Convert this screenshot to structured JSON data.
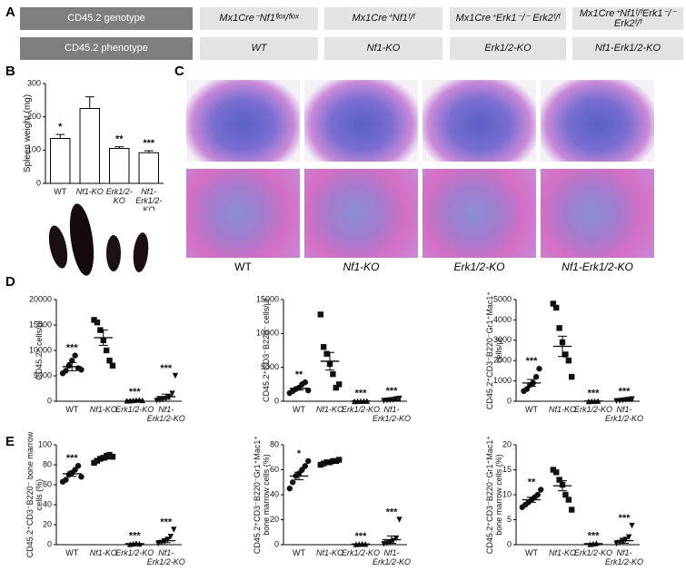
{
  "panel_labels": [
    "A",
    "B",
    "C",
    "D",
    "E"
  ],
  "table": {
    "rows": [
      [
        "CD45.2 genotype",
        "Mx1Cre⁻Nf1ᶠˡᵒˣ/ᶠˡᵒˣ",
        "Mx1Cre⁺Nf1ᶠ/ᶠ",
        "Mx1Cre⁺Erk1⁻/⁻ Erk2ᶠ/ᶠ",
        "Mx1Cre⁺Nf1ᶠ/ᶠErk1⁻/⁻ Erk2ᶠ/ᶠ"
      ],
      [
        "CD45.2 phenotype",
        "WT",
        "Nf1-KO",
        "Erk1/2-KO",
        "Nf1-Erk1/2-KO"
      ]
    ]
  },
  "histology": {
    "labels": [
      "WT",
      "Nf1-KO",
      "Erk1/2-KO",
      "Nf1-Erk1/2-KO"
    ]
  },
  "chart_data": [
    {
      "type": "bar",
      "ylabel": "Spleen weight (mg)",
      "categories": [
        "WT",
        "Nf1-KO",
        "Erk1/2-KO",
        "Nf1-Erk1/2-KO"
      ],
      "values": [
        135,
        225,
        105,
        92
      ],
      "errors": [
        12,
        35,
        5,
        6
      ],
      "annotations": [
        "*",
        null,
        "**",
        "***"
      ],
      "ylim": [
        0,
        300
      ],
      "yticks": [
        0,
        100,
        200,
        300
      ],
      "color": "#ffffff"
    },
    {
      "type": "dot",
      "ylabel": "CD45.2⁺ cells/μl",
      "categories": [
        "WT",
        "Nf1-KO",
        "Erk1/2-KO",
        "Nf1-Erk1/2-KO"
      ],
      "markers": [
        "circle",
        "square",
        "triangle",
        "triangle-down"
      ],
      "values": [
        6800,
        12500,
        200,
        900
      ],
      "errors": [
        800,
        1500,
        50,
        500
      ],
      "points": [
        [
          5500,
          6000,
          7000,
          8000,
          9000,
          6500,
          6200
        ],
        [
          16000,
          15500,
          14000,
          12000,
          10000,
          8000,
          7000
        ],
        [
          100,
          150,
          200,
          250,
          300,
          200
        ],
        [
          100,
          200,
          300,
          500,
          800,
          1500,
          5000
        ]
      ],
      "annotations": [
        "***",
        null,
        "***",
        "***"
      ],
      "ylim": [
        0,
        20000
      ],
      "yticks": [
        0,
        5000,
        10000,
        15000,
        20000
      ],
      "color": "#111111"
    },
    {
      "type": "dot",
      "ylabel": "CD45.2⁺CD3⁻B220⁻ cells/μl",
      "categories": [
        "WT",
        "Nf1-KO",
        "Erk1/2-KO",
        "Nf1-Erk1/2-KO"
      ],
      "markers": [
        "circle",
        "square",
        "triangle",
        "triangle-down"
      ],
      "values": [
        1900,
        5900,
        50,
        150
      ],
      "errors": [
        250,
        1300,
        10,
        60
      ],
      "points": [
        [
          1200,
          1500,
          1800,
          2000,
          2500,
          2800,
          1600
        ],
        [
          12800,
          8000,
          7000,
          5500,
          4000,
          2000,
          2500
        ],
        [
          0,
          20,
          30,
          40,
          50
        ],
        [
          50,
          100,
          150,
          200,
          300,
          400
        ]
      ],
      "annotations": [
        "**",
        null,
        "***",
        "***"
      ],
      "ylim": [
        0,
        15000
      ],
      "yticks": [
        0,
        5000,
        10000,
        15000
      ],
      "color": "#111111"
    },
    {
      "type": "dot",
      "ylabel": "CD45.2⁺CD3⁻B220⁻Gr1⁺Mac1⁺ cells/μl",
      "categories": [
        "WT",
        "Nf1-KO",
        "Erk1/2-KO",
        "Nf1-Erk1/2-KO"
      ],
      "markers": [
        "circle",
        "square",
        "triangle",
        "triangle-down"
      ],
      "values": [
        900,
        2700,
        10,
        50
      ],
      "errors": [
        170,
        500,
        5,
        15
      ],
      "points": [
        [
          500,
          600,
          800,
          900,
          1200,
          1600
        ],
        [
          4800,
          4600,
          3600,
          2900,
          2300,
          2000,
          1200
        ],
        [
          0,
          10,
          10,
          20
        ],
        [
          10,
          20,
          40,
          60,
          80,
          100
        ]
      ],
      "annotations": [
        "***",
        null,
        "***",
        "***"
      ],
      "ylim": [
        0,
        5000
      ],
      "yticks": [
        0,
        1000,
        2000,
        3000,
        4000,
        5000
      ],
      "color": "#111111"
    },
    {
      "type": "dot",
      "ylabel": "CD45.2⁺CD3⁻B220⁻ bone marrow cells (%)",
      "categories": [
        "WT",
        "Nf1-KO",
        "Erk1/2-KO",
        "Nf1-Erk1/2-KO"
      ],
      "markers": [
        "circle",
        "square",
        "triangle",
        "triangle-down"
      ],
      "values": [
        71,
        86,
        1,
        4
      ],
      "errors": [
        2.5,
        1.2,
        0.3,
        2
      ],
      "points": [
        [
          63,
          65,
          70,
          72,
          75,
          79,
          68
        ],
        [
          82,
          84,
          86,
          87,
          89,
          90,
          88
        ],
        [
          0.5,
          1,
          1.5,
          1
        ],
        [
          1,
          2,
          3,
          5,
          8,
          15
        ]
      ],
      "annotations": [
        "***",
        null,
        "***",
        "***"
      ],
      "ylim": [
        0,
        100
      ],
      "yticks": [
        0,
        20,
        40,
        60,
        80,
        100
      ],
      "color": "#111111"
    },
    {
      "type": "dot",
      "ylabel": "CD45.2⁺CD3⁻B220⁻Gr1⁺Mac1⁺ bone marrow cells (%)",
      "categories": [
        "WT",
        "Nf1-KO",
        "Erk1/2-KO",
        "Nf1-Erk1/2-KO"
      ],
      "markers": [
        "circle",
        "square",
        "triangle",
        "triangle-down"
      ],
      "values": [
        55,
        66,
        0.5,
        4
      ],
      "errors": [
        3,
        0.8,
        0.1,
        3
      ],
      "points": [
        [
          45,
          50,
          55,
          57,
          60,
          63,
          67
        ],
        [
          64,
          65,
          66,
          66,
          67,
          67,
          68
        ],
        [
          0.3,
          0.5,
          0.7,
          0.5
        ],
        [
          0.5,
          1,
          2,
          3,
          5,
          20
        ]
      ],
      "annotations": [
        "*",
        null,
        "***",
        "***"
      ],
      "ylim": [
        0,
        80
      ],
      "yticks": [
        0,
        20,
        40,
        60,
        80
      ],
      "color": "#111111"
    },
    {
      "type": "dot",
      "ylabel": "CD45.2⁺CD3⁻B220⁻Gr1⁺Mac1⁺ bone marrow cells (%)",
      "categories": [
        "WT",
        "Nf1-KO",
        "Erk1/2-KO",
        "Nf1-Erk1/2-KO"
      ],
      "markers": [
        "circle",
        "square",
        "triangle",
        "triangle-down"
      ],
      "values": [
        9,
        11.8,
        0.2,
        0.8
      ],
      "errors": [
        0.5,
        1,
        0.05,
        0.5
      ],
      "points": [
        [
          7.5,
          8,
          8.5,
          9,
          9.5,
          10,
          11
        ],
        [
          15,
          14.5,
          13,
          12,
          10,
          9,
          7
        ],
        [
          0.1,
          0.2,
          0.3
        ],
        [
          0.2,
          0.4,
          0.6,
          1,
          1.5,
          3.8
        ]
      ],
      "annotations": [
        "**",
        null,
        "***",
        "***"
      ],
      "ylim": [
        0,
        20
      ],
      "yticks": [
        0,
        5,
        10,
        15,
        20
      ],
      "color": "#111111"
    }
  ]
}
